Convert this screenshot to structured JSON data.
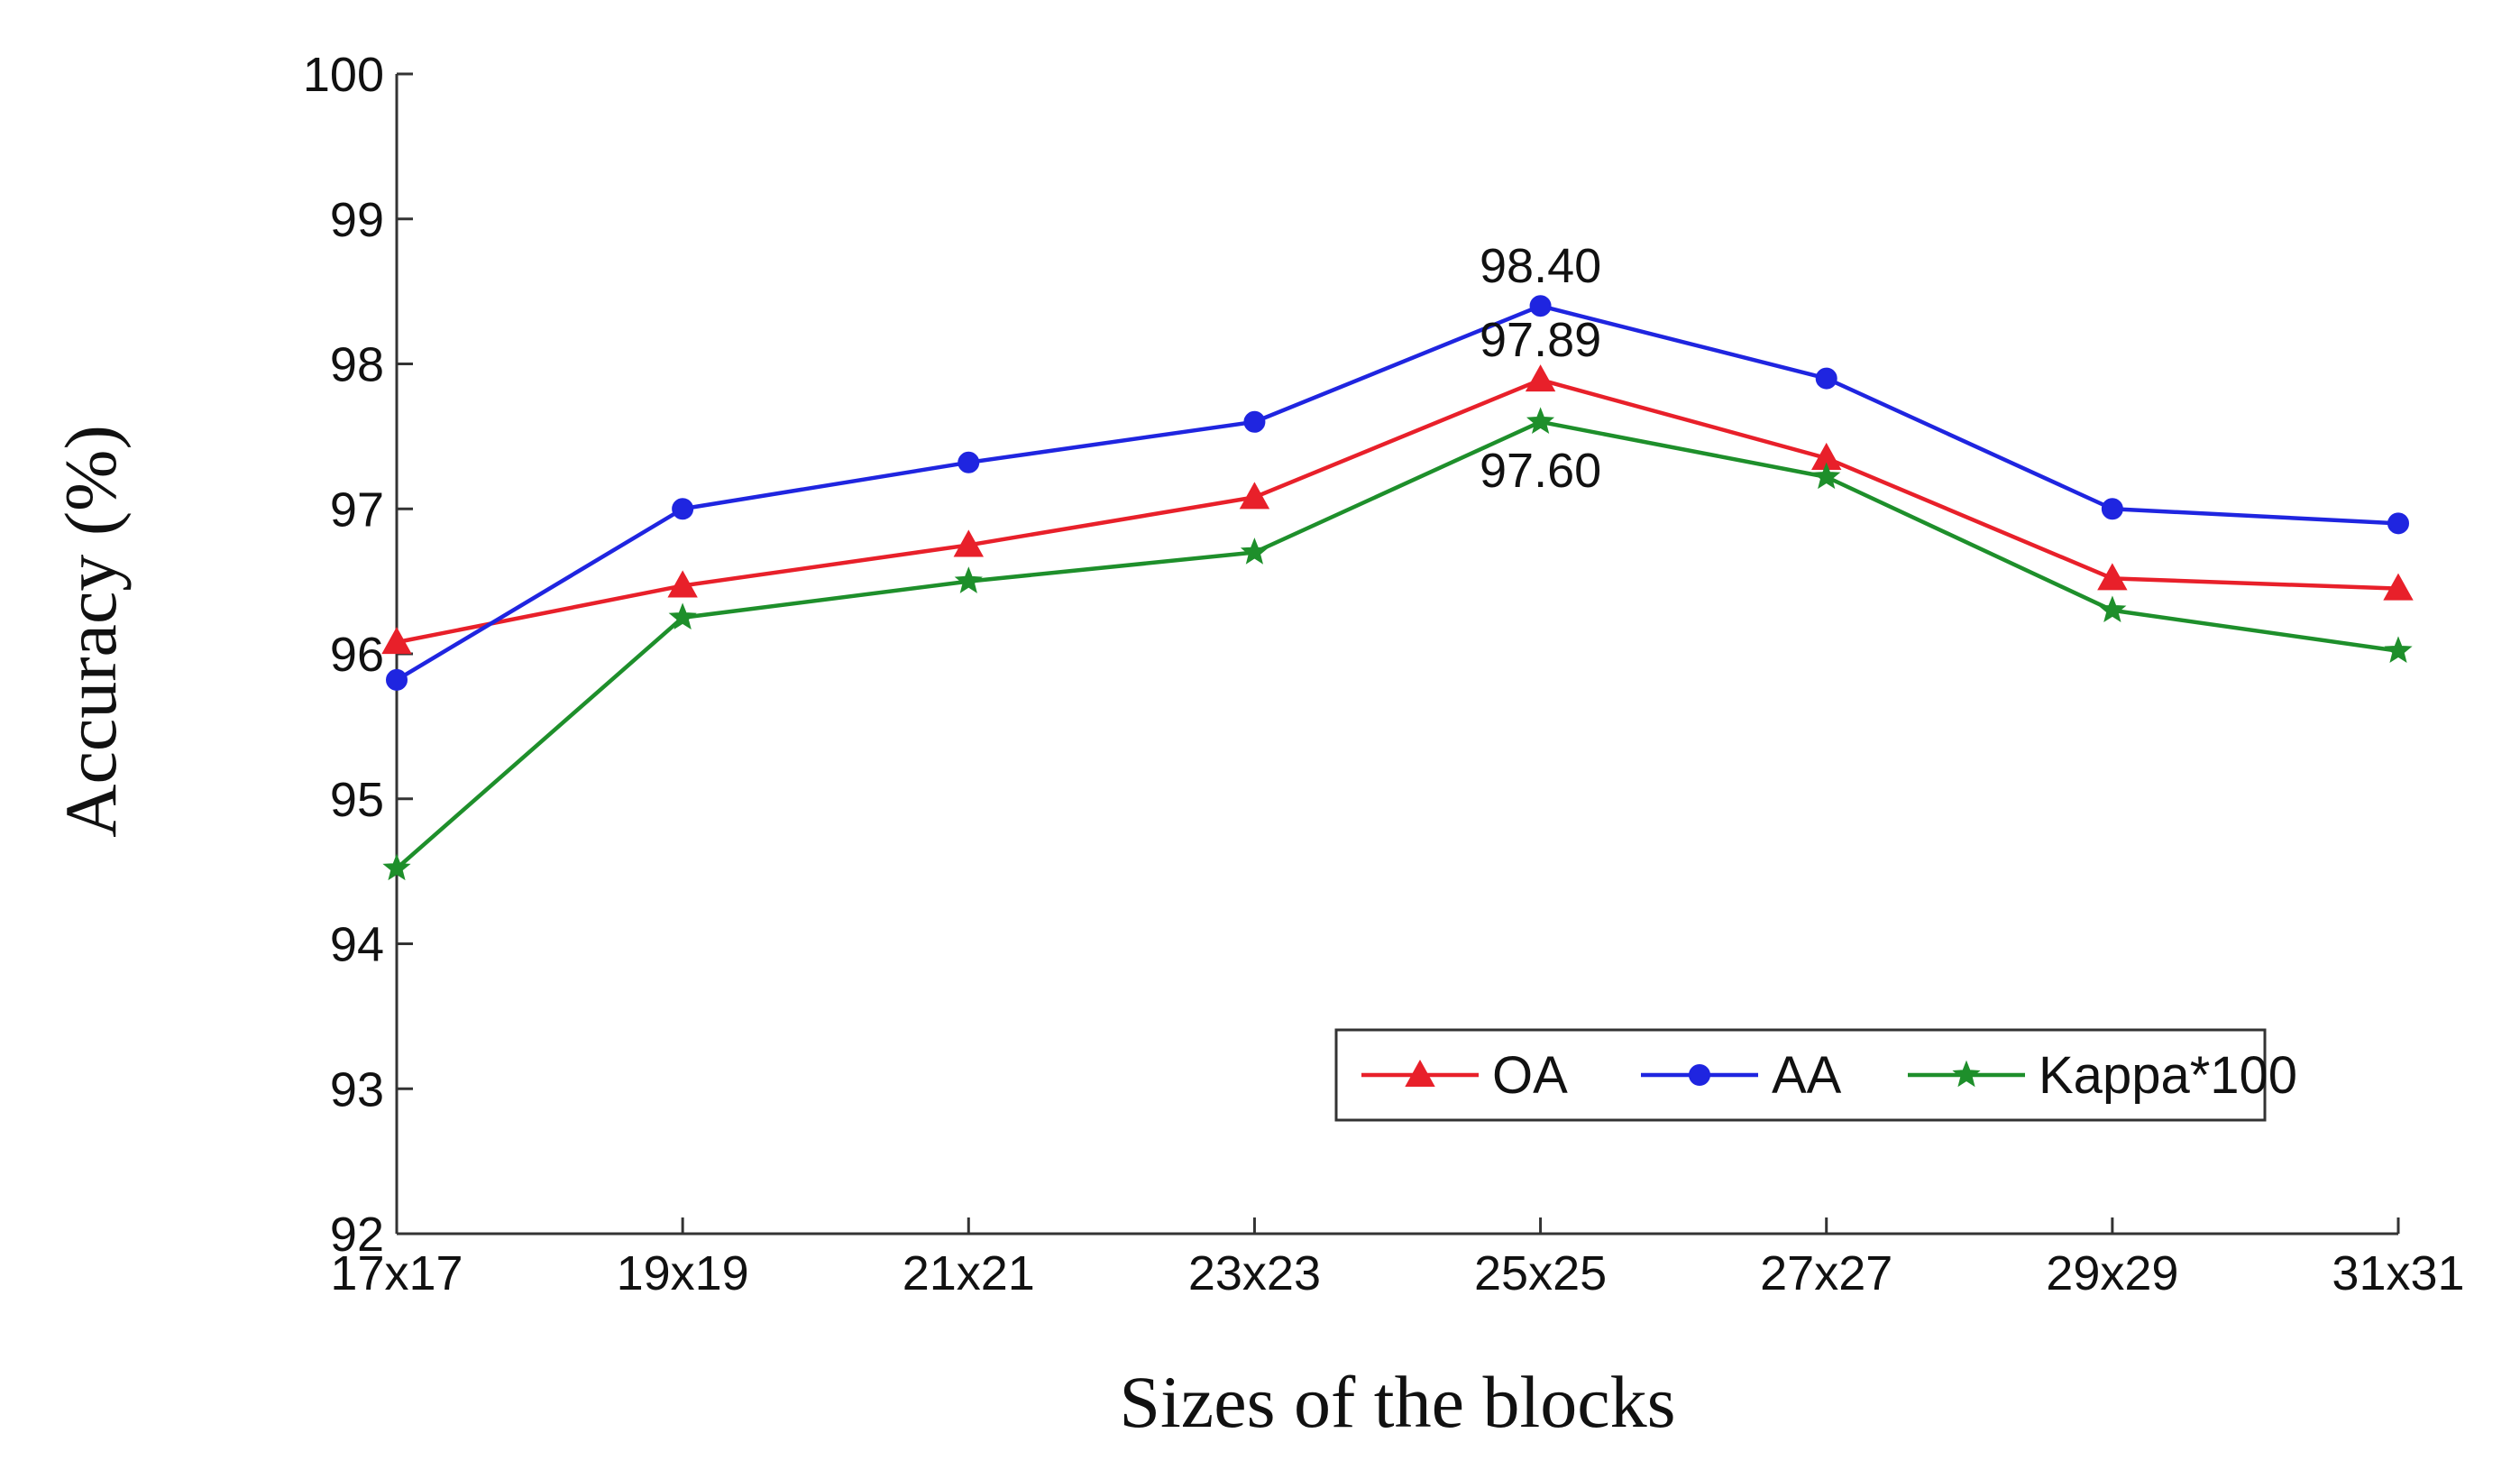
{
  "chart_data": {
    "type": "line",
    "title": "",
    "xlabel": "Sizes of the blocks",
    "ylabel": "Accuracy (%)",
    "categories": [
      "17x17",
      "19x19",
      "21x21",
      "23x23",
      "25x25",
      "27x27",
      "29x29",
      "31x31"
    ],
    "ylim": [
      92,
      100
    ],
    "yticks": [
      "92",
      "93",
      "94",
      "95",
      "96",
      "97",
      "98",
      "99",
      "100"
    ],
    "grid": false,
    "legend_position": "bottom-right",
    "series": [
      {
        "name": "OA",
        "color": "#e8202a",
        "marker": "triangle",
        "values": [
          96.08,
          96.47,
          96.75,
          97.08,
          97.89,
          97.35,
          96.52,
          96.45
        ]
      },
      {
        "name": "AA",
        "color": "#1f25e0",
        "marker": "circle",
        "values": [
          95.82,
          97.0,
          97.32,
          97.6,
          98.4,
          97.9,
          97.0,
          96.9
        ]
      },
      {
        "name": "Kappa*100",
        "color": "#1e8f2b",
        "marker": "star",
        "values": [
          94.52,
          96.25,
          96.5,
          96.7,
          97.6,
          97.22,
          96.3,
          96.02
        ]
      }
    ],
    "annotations": [
      {
        "text": "98.40",
        "category": "25x25",
        "value": 98.4,
        "placement": "above"
      },
      {
        "text": "97.89",
        "category": "25x25",
        "value": 97.89,
        "placement": "above"
      },
      {
        "text": "97.60",
        "category": "25x25",
        "value": 97.6,
        "placement": "below"
      }
    ]
  }
}
